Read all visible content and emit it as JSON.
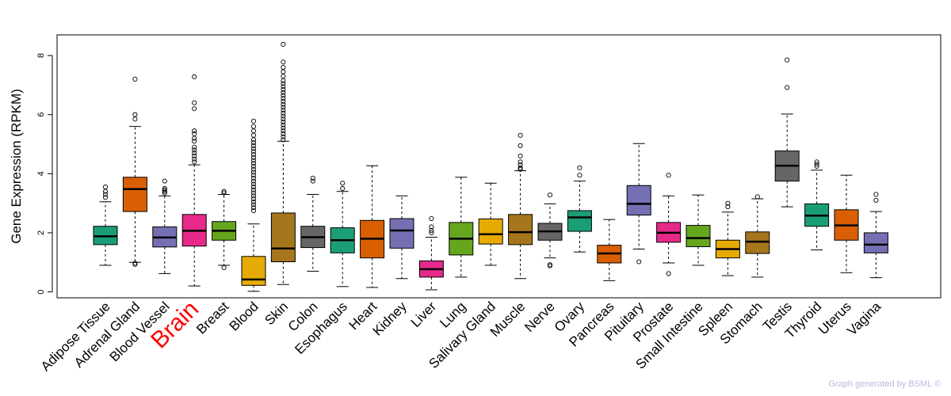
{
  "chart_data": {
    "type": "boxplot",
    "title": "",
    "xlabel": "",
    "ylabel": "Gene Expression (RPKM)",
    "ylim": [
      -0.2,
      8.7
    ],
    "yticks": [
      0,
      2,
      4,
      6,
      8
    ],
    "highlight": "Brain",
    "credit": "Graph generated by BSML ©",
    "categories": [
      {
        "name": "Adipose Tissue",
        "color": "#1b9e77",
        "whisker_low": 0.9,
        "q1": 1.6,
        "median": 1.88,
        "q3": 2.22,
        "whisker_high": 3.05,
        "outliers": [
          3.2,
          3.3,
          3.4,
          3.55
        ]
      },
      {
        "name": "Adrenal Gland",
        "color": "#d95f02",
        "whisker_low": 1.0,
        "q1": 2.72,
        "median": 3.48,
        "q3": 3.88,
        "whisker_high": 5.6,
        "outliers": [
          0.93,
          0.97,
          5.85,
          6.0,
          7.2
        ]
      },
      {
        "name": "Blood Vessel",
        "color": "#7570b3",
        "whisker_low": 0.62,
        "q1": 1.52,
        "median": 1.84,
        "q3": 2.2,
        "whisker_high": 3.25,
        "outliers": [
          3.35,
          3.4,
          3.45,
          3.5,
          3.75
        ]
      },
      {
        "name": "Brain",
        "color": "#e7298a",
        "whisker_low": 0.2,
        "q1": 1.55,
        "median": 2.07,
        "q3": 2.62,
        "whisker_high": 4.3,
        "outliers": [
          4.4,
          4.5,
          4.6,
          4.7,
          4.8,
          4.9,
          5.1,
          5.2,
          5.35,
          5.45,
          6.2,
          6.4,
          7.28
        ]
      },
      {
        "name": "Breast",
        "color": "#66a61e",
        "whisker_low": 0.9,
        "q1": 1.75,
        "median": 2.07,
        "q3": 2.38,
        "whisker_high": 3.3,
        "outliers": [
          0.82,
          3.35,
          3.4
        ]
      },
      {
        "name": "Blood",
        "color": "#e6ab02",
        "whisker_low": 0.02,
        "q1": 0.22,
        "median": 0.42,
        "q3": 1.2,
        "whisker_high": 2.3,
        "outliers": [
          2.75,
          2.85,
          2.95,
          3.05,
          3.15,
          3.25,
          3.35,
          3.45,
          3.55,
          3.65,
          3.75,
          3.85,
          3.95,
          4.05,
          4.15,
          4.25,
          4.35,
          4.45,
          4.55,
          4.65,
          4.75,
          4.85,
          4.95,
          5.05,
          5.15,
          5.3,
          5.45,
          5.6,
          5.78
        ]
      },
      {
        "name": "Skin",
        "color": "#a6761d",
        "whisker_low": 0.25,
        "q1": 1.02,
        "median": 1.47,
        "q3": 2.67,
        "whisker_high": 5.1,
        "outliers": [
          5.15,
          5.25,
          5.35,
          5.45,
          5.55,
          5.65,
          5.75,
          5.85,
          5.95,
          6.05,
          6.15,
          6.25,
          6.35,
          6.45,
          6.55,
          6.65,
          6.75,
          6.85,
          6.95,
          7.05,
          7.15,
          7.3,
          7.45,
          7.6,
          7.78,
          8.38
        ]
      },
      {
        "name": "Colon",
        "color": "#666666",
        "whisker_low": 0.7,
        "q1": 1.5,
        "median": 1.85,
        "q3": 2.22,
        "whisker_high": 3.3,
        "outliers": [
          3.75,
          3.85
        ]
      },
      {
        "name": "Esophagus",
        "color": "#1b9e77",
        "whisker_low": 0.18,
        "q1": 1.32,
        "median": 1.75,
        "q3": 2.17,
        "whisker_high": 3.4,
        "outliers": [
          3.5,
          3.68
        ]
      },
      {
        "name": "Heart",
        "color": "#d95f02",
        "whisker_low": 0.15,
        "q1": 1.15,
        "median": 1.8,
        "q3": 2.42,
        "whisker_high": 4.27,
        "outliers": []
      },
      {
        "name": "Kidney",
        "color": "#7570b3",
        "whisker_low": 0.45,
        "q1": 1.48,
        "median": 2.08,
        "q3": 2.48,
        "whisker_high": 3.25,
        "outliers": []
      },
      {
        "name": "Liver",
        "color": "#e7298a",
        "whisker_low": 0.07,
        "q1": 0.5,
        "median": 0.77,
        "q3": 1.05,
        "whisker_high": 1.85,
        "outliers": [
          2.0,
          2.08,
          2.2,
          2.48
        ]
      },
      {
        "name": "Lung",
        "color": "#66a61e",
        "whisker_low": 0.5,
        "q1": 1.25,
        "median": 1.8,
        "q3": 2.35,
        "whisker_high": 3.88,
        "outliers": []
      },
      {
        "name": "Salivary Gland",
        "color": "#e6ab02",
        "whisker_low": 0.9,
        "q1": 1.62,
        "median": 1.95,
        "q3": 2.47,
        "whisker_high": 3.68,
        "outliers": []
      },
      {
        "name": "Muscle",
        "color": "#a6761d",
        "whisker_low": 0.45,
        "q1": 1.6,
        "median": 2.02,
        "q3": 2.62,
        "whisker_high": 4.1,
        "outliers": [
          4.15,
          4.2,
          4.3,
          4.4,
          4.6,
          4.95,
          5.3
        ]
      },
      {
        "name": "Nerve",
        "color": "#666666",
        "whisker_low": 1.15,
        "q1": 1.75,
        "median": 2.05,
        "q3": 2.32,
        "whisker_high": 2.98,
        "outliers": [
          0.88,
          0.92,
          3.28
        ]
      },
      {
        "name": "Ovary",
        "color": "#1b9e77",
        "whisker_low": 1.35,
        "q1": 2.05,
        "median": 2.52,
        "q3": 2.75,
        "whisker_high": 3.75,
        "outliers": [
          3.95,
          4.2
        ]
      },
      {
        "name": "Pancreas",
        "color": "#d95f02",
        "whisker_low": 0.38,
        "q1": 0.98,
        "median": 1.3,
        "q3": 1.58,
        "whisker_high": 2.45,
        "outliers": []
      },
      {
        "name": "Pituitary",
        "color": "#7570b3",
        "whisker_low": 1.45,
        "q1": 2.6,
        "median": 2.98,
        "q3": 3.6,
        "whisker_high": 5.02,
        "outliers": [
          1.02
        ]
      },
      {
        "name": "Prostate",
        "color": "#e7298a",
        "whisker_low": 0.98,
        "q1": 1.68,
        "median": 2.0,
        "q3": 2.35,
        "whisker_high": 3.25,
        "outliers": [
          0.62,
          3.95
        ]
      },
      {
        "name": "Small Intestine",
        "color": "#66a61e",
        "whisker_low": 0.9,
        "q1": 1.53,
        "median": 1.82,
        "q3": 2.25,
        "whisker_high": 3.28,
        "outliers": []
      },
      {
        "name": "Spleen",
        "color": "#e6ab02",
        "whisker_low": 0.55,
        "q1": 1.15,
        "median": 1.45,
        "q3": 1.75,
        "whisker_high": 2.7,
        "outliers": [
          2.88,
          3.0
        ]
      },
      {
        "name": "Stomach",
        "color": "#a6761d",
        "whisker_low": 0.5,
        "q1": 1.3,
        "median": 1.7,
        "q3": 2.03,
        "whisker_high": 3.15,
        "outliers": [
          3.22
        ]
      },
      {
        "name": "Testis",
        "color": "#666666",
        "whisker_low": 2.88,
        "q1": 3.75,
        "median": 4.27,
        "q3": 4.77,
        "whisker_high": 6.02,
        "outliers": [
          6.92,
          7.85
        ]
      },
      {
        "name": "Thyroid",
        "color": "#1b9e77",
        "whisker_low": 1.42,
        "q1": 2.22,
        "median": 2.58,
        "q3": 2.98,
        "whisker_high": 4.12,
        "outliers": [
          4.25,
          4.32,
          4.4
        ]
      },
      {
        "name": "Uterus",
        "color": "#d95f02",
        "whisker_low": 0.65,
        "q1": 1.75,
        "median": 2.25,
        "q3": 2.78,
        "whisker_high": 3.95,
        "outliers": []
      },
      {
        "name": "Vagina",
        "color": "#7570b3",
        "whisker_low": 0.48,
        "q1": 1.32,
        "median": 1.6,
        "q3": 2.0,
        "whisker_high": 2.72,
        "outliers": [
          3.1,
          3.3
        ]
      }
    ]
  }
}
